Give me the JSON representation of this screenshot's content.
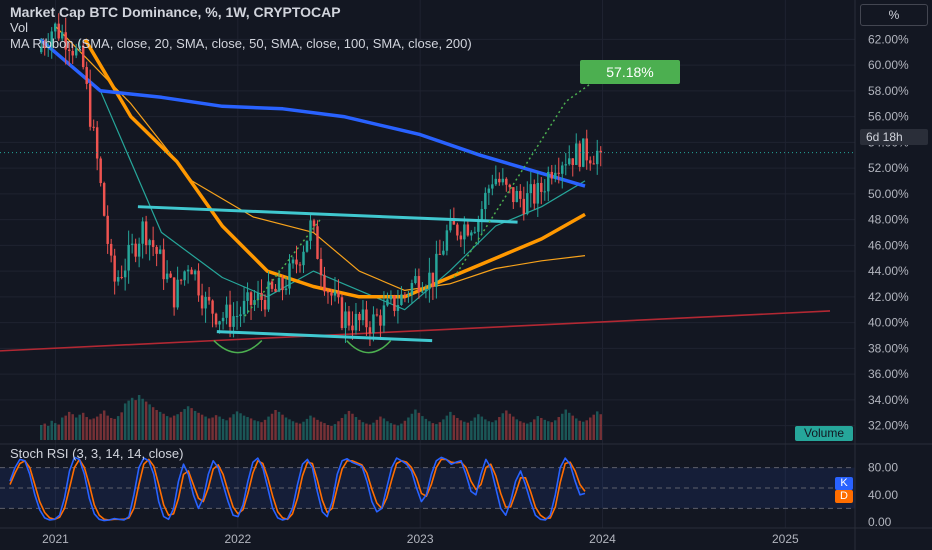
{
  "legend": {
    "title": "Market Cap BTC Dominance, %, 1W, CRYPTOCAP",
    "vol": "Vol",
    "ma_ribbon": "MA Ribbon (SMA, close, 20, SMA, close, 50, SMA, close, 100, SMA, close, 200)"
  },
  "unit_label": "%",
  "countdown": "6d 18h",
  "volume_label": "Volume",
  "annotation": "57.18%",
  "stoch_legend": "Stoch RSI (3, 3, 14, 14, close)",
  "stoch_k": "K",
  "stoch_d": "D",
  "colors": {
    "background": "#131722",
    "up": "#26a69a",
    "down": "#ef5350",
    "ma20": "#26a69a",
    "ma50": "#f7a21b",
    "ma100": "#ff9800",
    "ma200": "#2962ff",
    "trendline": "#40c8d0",
    "support": "#b22833",
    "arc": "#4caf50",
    "stoch_k": "#2962ff",
    "stoch_d": "#ff6d00"
  },
  "chart_data": {
    "type": "candlestick",
    "y_unit": "%",
    "y_ticks": [
      "62.00%",
      "60.00%",
      "58.00%",
      "56.00%",
      "54.00%",
      "52.00%",
      "50.00%",
      "48.00%",
      "46.00%",
      "44.00%",
      "42.00%",
      "40.00%",
      "38.00%",
      "36.00%",
      "34.00%",
      "32.00%"
    ],
    "x_ticks": [
      "2021",
      "2022",
      "2023",
      "2024",
      "2025"
    ],
    "ylim": [
      31.5,
      63.5
    ],
    "stoch_ticks": [
      "80.00",
      "40.00",
      "0.00"
    ],
    "stoch_ylim": [
      0,
      100
    ],
    "price_path": [
      [
        "2020-12-01",
        61.0
      ],
      [
        "2021-01-01",
        63.0
      ],
      [
        "2021-02-01",
        62.0
      ],
      [
        "2021-03-01",
        60.0
      ],
      [
        "2021-04-01",
        52.0
      ],
      [
        "2021-05-01",
        43.0
      ],
      [
        "2021-06-01",
        45.0
      ],
      [
        "2021-07-01",
        47.5
      ],
      [
        "2021-08-01",
        45.0
      ],
      [
        "2021-09-01",
        42.0
      ],
      [
        "2021-10-01",
        45.0
      ],
      [
        "2021-11-01",
        41.5
      ],
      [
        "2021-12-01",
        40.5
      ],
      [
        "2022-01-01",
        40.5
      ],
      [
        "2022-02-01",
        41.5
      ],
      [
        "2022-03-01",
        42.0
      ],
      [
        "2022-04-01",
        42.5
      ],
      [
        "2022-05-01",
        44.5
      ],
      [
        "2022-06-01",
        47.5
      ],
      [
        "2022-07-01",
        43.0
      ],
      [
        "2022-08-01",
        40.5
      ],
      [
        "2022-09-01",
        40.0
      ],
      [
        "2022-10-01",
        40.0
      ],
      [
        "2022-11-01",
        41.0
      ],
      [
        "2022-12-01",
        42.0
      ],
      [
        "2023-01-01",
        43.5
      ],
      [
        "2023-02-01",
        43.5
      ],
      [
        "2023-03-01",
        47.0
      ],
      [
        "2023-04-01",
        47.5
      ],
      [
        "2023-05-01",
        48.0
      ],
      [
        "2023-06-01",
        51.5
      ],
      [
        "2023-07-01",
        50.0
      ],
      [
        "2023-08-01",
        49.5
      ],
      [
        "2023-09-01",
        50.0
      ],
      [
        "2023-10-01",
        52.5
      ],
      [
        "2023-11-01",
        53.0
      ],
      [
        "2023-11-27",
        53.2
      ]
    ],
    "current_price": 53.2,
    "target_price": 57.18,
    "ma200": [
      [
        "2020-12-01",
        62.0
      ],
      [
        "2021-04-01",
        58.0
      ],
      [
        "2021-08-01",
        57.5
      ],
      [
        "2021-12-01",
        56.8
      ],
      [
        "2022-04-01",
        56.6
      ],
      [
        "2022-08-01",
        56.0
      ],
      [
        "2023-01-01",
        54.6
      ],
      [
        "2023-05-01",
        53.0
      ],
      [
        "2023-11-27",
        50.6
      ]
    ],
    "ma100": [
      [
        "2021-03-01",
        62.0
      ],
      [
        "2021-06-01",
        56.0
      ],
      [
        "2021-09-01",
        52.5
      ],
      [
        "2021-12-01",
        47.5
      ],
      [
        "2022-03-01",
        44.0
      ],
      [
        "2022-06-01",
        42.8
      ],
      [
        "2022-09-01",
        42.0
      ],
      [
        "2022-12-01",
        42.0
      ],
      [
        "2023-03-01",
        43.5
      ],
      [
        "2023-06-01",
        45.0
      ],
      [
        "2023-09-01",
        46.5
      ],
      [
        "2023-11-27",
        48.4
      ]
    ],
    "ma50": [
      [
        "2021-01-01",
        63.0
      ],
      [
        "2021-06-01",
        57.0
      ],
      [
        "2021-10-01",
        51.0
      ],
      [
        "2022-02-01",
        48.2
      ],
      [
        "2022-06-01",
        47.0
      ],
      [
        "2022-09-01",
        44.0
      ],
      [
        "2022-12-01",
        42.5
      ],
      [
        "2023-03-01",
        43.0
      ],
      [
        "2023-06-01",
        44.2
      ],
      [
        "2023-09-01",
        44.8
      ],
      [
        "2023-11-27",
        45.2
      ]
    ],
    "ma20": [
      [
        "2021-04-01",
        58.0
      ],
      [
        "2021-08-01",
        47.0
      ],
      [
        "2021-12-01",
        43.5
      ],
      [
        "2022-03-01",
        42.0
      ],
      [
        "2022-06-01",
        44.0
      ],
      [
        "2022-09-01",
        42.5
      ],
      [
        "2022-12-01",
        41.0
      ],
      [
        "2023-03-01",
        44.0
      ],
      [
        "2023-06-01",
        47.5
      ],
      [
        "2023-09-01",
        49.0
      ],
      [
        "2023-11-27",
        51.0
      ]
    ],
    "volume": [
      3.2,
      3.5,
      3.0,
      4.1,
      3.6,
      3.3,
      4.8,
      5.2,
      6.0,
      5.5,
      4.8,
      5.4,
      5.8,
      4.9,
      4.4,
      4.6,
      5.0,
      5.6,
      6.3,
      5.2,
      4.7,
      4.5,
      5.1,
      5.9,
      7.8,
      8.4,
      9.0,
      8.5,
      9.6,
      8.8,
      8.2,
      7.6,
      7.0,
      6.4,
      6.0,
      5.6,
      5.1,
      4.8,
      5.2,
      5.5,
      6.0,
      6.6,
      7.2,
      6.8,
      6.2,
      5.8,
      5.4,
      5.0,
      4.6,
      4.8,
      5.3,
      5.0,
      4.5,
      4.2,
      4.8,
      5.5,
      6.1,
      5.7,
      5.2,
      4.9,
      4.6,
      4.2,
      4.0,
      3.8,
      4.3,
      5.0,
      5.6,
      6.4,
      6.0,
      5.4,
      4.8,
      4.4,
      4.0,
      3.7,
      3.5,
      3.9,
      4.5,
      5.2,
      4.8,
      4.3,
      3.9,
      3.6,
      3.2,
      3.0,
      3.4,
      4.0,
      4.7,
      5.5,
      6.2,
      5.6,
      4.9,
      4.3,
      3.8,
      3.5,
      3.3,
      3.7,
      4.3,
      5.0,
      4.6,
      4.0,
      3.6,
      3.3,
      3.1,
      3.5,
      4.1,
      4.8,
      5.6,
      6.5,
      5.8,
      5.1,
      4.5,
      4.0,
      3.6,
      3.4,
      3.8,
      4.4,
      5.2,
      6.0,
      5.3,
      4.7,
      4.2,
      3.9,
      3.7,
      4.1,
      4.8,
      5.5,
      5.0,
      4.4,
      4.0,
      3.8,
      4.2,
      4.9,
      5.7,
      6.3,
      5.6,
      5.0,
      4.4,
      4.0,
      3.7,
      3.5,
      3.8,
      4.4,
      5.1,
      4.7,
      4.3,
      4.0,
      3.8,
      4.2,
      4.9,
      5.6,
      6.5,
      5.8,
      5.2,
      4.6,
      4.1,
      3.9,
      4.2,
      4.8,
      5.4,
      6.1,
      5.5,
      4.9
    ],
    "stoch_k": [
      60,
      80,
      92,
      90,
      70,
      40,
      18,
      6,
      3,
      4,
      10,
      35,
      75,
      95,
      92,
      70,
      35,
      12,
      4,
      2,
      3,
      5,
      4,
      3,
      8,
      40,
      80,
      94,
      90,
      70,
      30,
      8,
      4,
      20,
      60,
      85,
      70,
      40,
      20,
      35,
      70,
      90,
      80,
      55,
      30,
      10,
      8,
      25,
      60,
      88,
      94,
      80,
      50,
      20,
      6,
      3,
      5,
      20,
      55,
      85,
      92,
      80,
      45,
      15,
      8,
      30,
      70,
      90,
      93,
      88,
      85,
      82,
      60,
      30,
      15,
      20,
      50,
      80,
      94,
      90,
      85,
      75,
      50,
      30,
      40,
      70,
      90,
      95,
      92,
      85,
      88,
      90,
      70,
      45,
      40,
      70,
      92,
      80,
      50,
      20,
      10,
      30,
      60,
      75,
      55,
      30,
      10,
      4,
      3,
      10,
      40,
      80,
      94,
      85,
      60,
      40,
      42
    ],
    "stoch_d": [
      55,
      72,
      86,
      90,
      80,
      55,
      30,
      14,
      6,
      4,
      7,
      20,
      50,
      80,
      92,
      80,
      55,
      25,
      10,
      4,
      3,
      4,
      4,
      4,
      6,
      20,
      55,
      85,
      92,
      82,
      55,
      25,
      10,
      12,
      35,
      70,
      75,
      55,
      35,
      30,
      50,
      78,
      84,
      70,
      45,
      22,
      12,
      18,
      42,
      72,
      90,
      86,
      65,
      38,
      15,
      6,
      4,
      12,
      35,
      68,
      88,
      86,
      62,
      32,
      14,
      20,
      50,
      78,
      90,
      90,
      87,
      84,
      72,
      48,
      28,
      20,
      35,
      62,
      86,
      90,
      88,
      80,
      65,
      42,
      38,
      55,
      80,
      92,
      92,
      88,
      87,
      88,
      80,
      60,
      48,
      55,
      80,
      85,
      68,
      42,
      22,
      22,
      42,
      65,
      65,
      45,
      22,
      10,
      5,
      6,
      22,
      58,
      86,
      88,
      75,
      55,
      45
    ]
  }
}
